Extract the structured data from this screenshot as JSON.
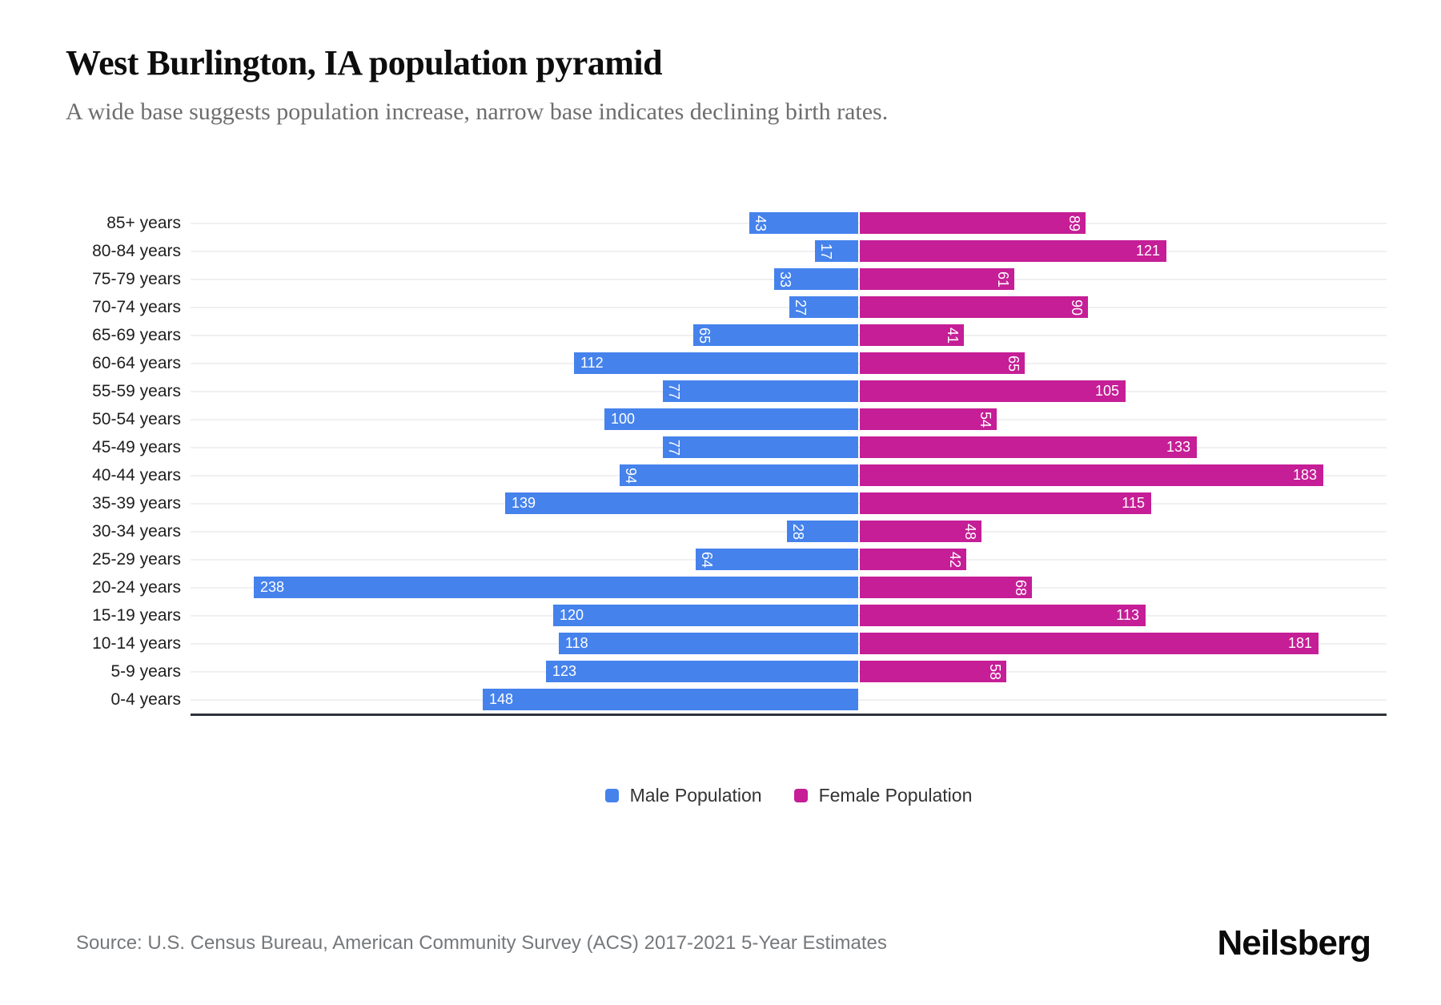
{
  "title": "West Burlington, IA population pyramid",
  "subtitle": "A wide base suggests population increase, narrow base indicates declining birth rates.",
  "legend": {
    "male_label": "Male Population",
    "female_label": "Female Population"
  },
  "footer": {
    "source": "Source: U.S. Census Bureau, American Community Survey (ACS) 2017-2021 5-Year Estimates",
    "logo": "Neilsberg"
  },
  "colors": {
    "male": "#4582EC",
    "female": "#C51E96",
    "gridline": "#f0f0f0",
    "axis_line": "#2e3338",
    "bar_value_text": "#ffffff"
  },
  "chart_data": {
    "type": "bar",
    "variant": "population-pyramid",
    "orientation": "horizontal",
    "grid": "category-lines",
    "legend_position": "bottom-center",
    "categories": [
      "85+ years",
      "80-84 years",
      "75-79 years",
      "70-74 years",
      "65-69 years",
      "60-64 years",
      "55-59 years",
      "50-54 years",
      "45-49 years",
      "40-44 years",
      "35-39 years",
      "30-34 years",
      "25-29 years",
      "20-24 years",
      "15-19 years",
      "10-14 years",
      "5-9 years",
      "0-4 years"
    ],
    "series": [
      {
        "name": "Male Population",
        "side": "left",
        "color": "#4582EC",
        "values": [
          43,
          17,
          33,
          27,
          65,
          112,
          77,
          100,
          77,
          94,
          139,
          28,
          64,
          238,
          120,
          118,
          123,
          148
        ]
      },
      {
        "name": "Female Population",
        "side": "right",
        "color": "#C51E96",
        "values": [
          89,
          121,
          61,
          90,
          41,
          65,
          105,
          54,
          133,
          183,
          115,
          48,
          42,
          68,
          113,
          181,
          58,
          0
        ]
      }
    ],
    "value_labels": "inside bar ends, white; two-digit values rotated 90deg",
    "axis_range_left_max": 263,
    "axis_range_right_max": 208
  }
}
